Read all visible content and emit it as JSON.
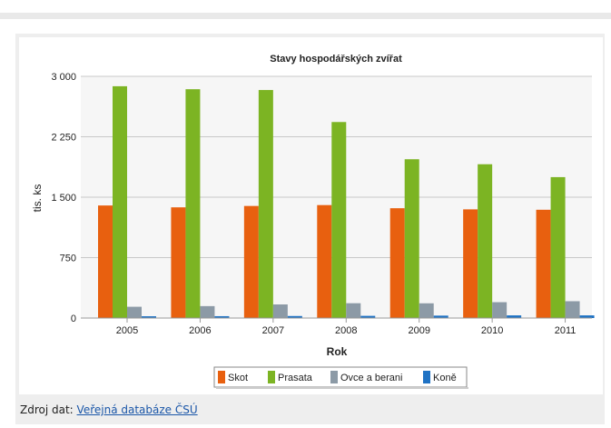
{
  "chart_data": {
    "type": "bar",
    "title": "Stavy hospodářských zvířat",
    "xlabel": "Rok",
    "ylabel": "tis. ks",
    "ylim": [
      0,
      3000
    ],
    "yticks": [
      0,
      750,
      1500,
      2250,
      3000
    ],
    "ytick_labels": [
      "0",
      "750",
      "1 500",
      "2 250",
      "3 000"
    ],
    "categories": [
      "2005",
      "2006",
      "2007",
      "2008",
      "2009",
      "2010",
      "2011"
    ],
    "series": [
      {
        "name": "Skot",
        "color": "#e8600f",
        "values": [
          1397,
          1374,
          1391,
          1402,
          1363,
          1349,
          1344
        ]
      },
      {
        "name": "Prasata",
        "color": "#7cb423",
        "values": [
          2877,
          2840,
          2830,
          2433,
          1971,
          1909,
          1749
        ]
      },
      {
        "name": "Ovce a berani",
        "color": "#8c9aa6",
        "values": [
          140,
          148,
          169,
          184,
          183,
          197,
          209
        ]
      },
      {
        "name": "Koně",
        "color": "#1f72c4",
        "values": [
          22,
          23,
          25,
          27,
          30,
          33,
          33
        ]
      }
    ],
    "grid": true,
    "legend_position": "bottom"
  },
  "footer": {
    "source_label": "Zdroj dat:",
    "source_link": "Veřejná databáze ČSÚ"
  }
}
